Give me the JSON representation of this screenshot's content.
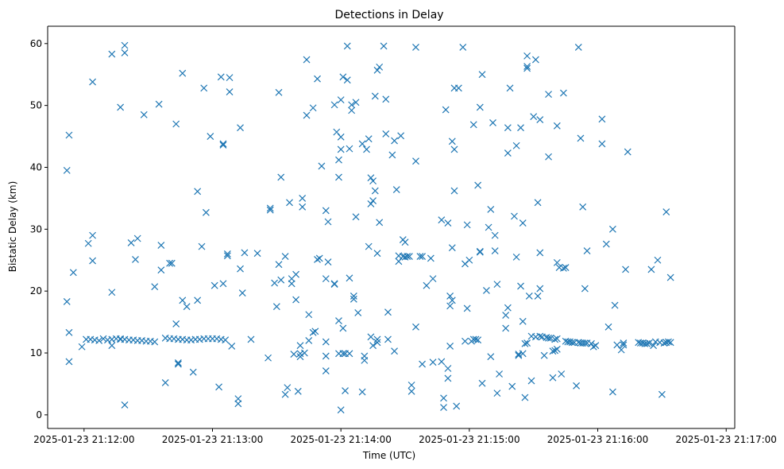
{
  "chart_data": {
    "type": "scatter",
    "title": "Detections in Delay",
    "xlabel": "Time (UTC)",
    "ylabel": "Bistatic Delay (km)",
    "x_units": "seconds after 2025-01-23 21:12:00 UTC",
    "xlim": [
      -17,
      304
    ],
    "ylim": [
      -2.2,
      62.8
    ],
    "grid": false,
    "marker": "x",
    "color": "#1f77b4",
    "x_ticks": [
      {
        "value": 0,
        "label": "2025-01-23 21:12:00"
      },
      {
        "value": 60,
        "label": "2025-01-23 21:13:00"
      },
      {
        "value": 120,
        "label": "2025-01-23 21:14:00"
      },
      {
        "value": 180,
        "label": "2025-01-23 21:15:00"
      },
      {
        "value": 240,
        "label": "2025-01-23 21:16:00"
      },
      {
        "value": 300,
        "label": "2025-01-23 21:17:00"
      }
    ],
    "y_ticks": [
      {
        "value": 0,
        "label": "0"
      },
      {
        "value": 10,
        "label": "10"
      },
      {
        "value": 20,
        "label": "20"
      },
      {
        "value": 30,
        "label": "30"
      },
      {
        "value": 40,
        "label": "40"
      },
      {
        "value": 50,
        "label": "50"
      },
      {
        "value": 60,
        "label": "60"
      }
    ],
    "points": [
      [
        -8,
        39.5
      ],
      [
        -8,
        18.3
      ],
      [
        -7,
        45.2
      ],
      [
        -7,
        13.3
      ],
      [
        -7,
        8.6
      ],
      [
        -5,
        23
      ],
      [
        -1,
        11
      ],
      [
        2,
        27.7
      ],
      [
        4,
        29
      ],
      [
        4,
        24.9
      ],
      [
        4,
        53.8
      ],
      [
        1,
        12.2
      ],
      [
        3,
        12.2
      ],
      [
        5,
        12.1
      ],
      [
        7,
        12
      ],
      [
        9,
        12.3
      ],
      [
        11,
        12.1
      ],
      [
        13,
        12.2
      ],
      [
        15,
        12.3
      ],
      [
        17,
        12.2
      ],
      [
        13,
        19.8
      ],
      [
        13,
        58.3
      ],
      [
        13,
        11.2
      ],
      [
        17,
        49.7
      ],
      [
        19,
        59.7
      ],
      [
        19,
        58.5
      ],
      [
        19,
        1.6
      ],
      [
        22,
        27.8
      ],
      [
        24,
        25.1
      ],
      [
        25,
        28.5
      ],
      [
        28,
        48.5
      ],
      [
        17,
        12.3
      ],
      [
        19,
        12.2
      ],
      [
        21,
        12.1
      ],
      [
        23,
        12.1
      ],
      [
        25,
        12
      ],
      [
        27,
        12
      ],
      [
        29,
        11.9
      ],
      [
        31,
        11.9
      ],
      [
        33,
        11.8
      ],
      [
        33,
        20.7
      ],
      [
        36,
        27.4
      ],
      [
        36,
        23.4
      ],
      [
        38,
        5.2
      ],
      [
        38,
        12.4
      ],
      [
        40,
        24.5
      ],
      [
        41,
        24.5
      ],
      [
        43,
        47
      ],
      [
        43,
        14.7
      ],
      [
        44,
        8.4
      ],
      [
        44,
        8.2
      ],
      [
        35,
        50.2
      ],
      [
        46,
        55.2
      ],
      [
        46,
        18.5
      ],
      [
        48,
        17.5
      ],
      [
        40,
        12.3
      ],
      [
        42,
        12.3
      ],
      [
        44,
        12.2
      ],
      [
        46,
        12.2
      ],
      [
        48,
        12.1
      ],
      [
        50,
        12.1
      ],
      [
        52,
        12.2
      ],
      [
        54,
        12.2
      ],
      [
        56,
        12.3
      ],
      [
        58,
        12.3
      ],
      [
        60,
        12.3
      ],
      [
        62,
        12.3
      ],
      [
        64,
        12.2
      ],
      [
        66,
        12.1
      ],
      [
        51,
        6.9
      ],
      [
        53,
        36.1
      ],
      [
        53,
        18.5
      ],
      [
        55,
        27.2
      ],
      [
        56,
        52.8
      ],
      [
        57,
        32.7
      ],
      [
        59,
        45
      ],
      [
        61,
        20.9
      ],
      [
        63,
        4.5
      ],
      [
        64,
        54.6
      ],
      [
        65,
        43.8
      ],
      [
        65,
        43.6
      ],
      [
        65,
        21.2
      ],
      [
        67,
        25.7
      ],
      [
        67,
        26
      ],
      [
        68,
        54.5
      ],
      [
        68,
        52.2
      ],
      [
        69,
        11.1
      ],
      [
        72,
        2.6
      ],
      [
        72,
        1.8
      ],
      [
        73,
        23.6
      ],
      [
        73,
        46.4
      ],
      [
        74,
        19.7
      ],
      [
        75,
        26.2
      ],
      [
        78,
        12.2
      ],
      [
        81,
        26.1
      ],
      [
        86,
        9.2
      ],
      [
        87,
        33.4
      ],
      [
        87,
        33.1
      ],
      [
        89,
        21.3
      ],
      [
        90,
        17.5
      ],
      [
        91,
        24.3
      ],
      [
        91,
        52.1
      ],
      [
        92,
        38.4
      ],
      [
        92,
        21.8
      ],
      [
        94,
        25.6
      ],
      [
        94,
        3.3
      ],
      [
        95,
        4.4
      ],
      [
        96,
        34.3
      ],
      [
        97,
        22
      ],
      [
        97,
        21.2
      ],
      [
        98,
        9.8
      ],
      [
        99,
        22.7
      ],
      [
        99,
        18.6
      ],
      [
        100,
        3.8
      ],
      [
        101,
        11.2
      ],
      [
        101,
        9.9
      ],
      [
        101,
        9.4
      ],
      [
        102,
        33.6
      ],
      [
        102,
        35
      ],
      [
        103,
        10
      ],
      [
        104,
        48.4
      ],
      [
        104,
        57.4
      ],
      [
        105,
        16.2
      ],
      [
        105,
        12
      ],
      [
        107,
        13.3
      ],
      [
        107,
        49.6
      ],
      [
        108,
        13.5
      ],
      [
        109,
        54.3
      ],
      [
        109,
        25.1
      ],
      [
        110,
        25.3
      ],
      [
        111,
        40.2
      ],
      [
        113,
        22
      ],
      [
        113,
        33
      ],
      [
        113,
        9.5
      ],
      [
        113,
        7.1
      ],
      [
        114,
        31.2
      ],
      [
        113,
        11.8
      ],
      [
        114,
        24.7
      ],
      [
        117,
        21.2
      ],
      [
        117,
        21.1
      ],
      [
        117,
        50.1
      ],
      [
        118,
        45.7
      ],
      [
        119,
        41.2
      ],
      [
        119,
        38.4
      ],
      [
        119,
        15.2
      ],
      [
        119,
        9.9
      ],
      [
        120,
        50.9
      ],
      [
        120,
        42.9
      ],
      [
        120,
        44.9
      ],
      [
        120,
        0.8
      ],
      [
        121,
        14
      ],
      [
        121,
        9.9
      ],
      [
        121,
        54.6
      ],
      [
        122,
        3.9
      ],
      [
        122,
        9.9
      ],
      [
        123,
        59.6
      ],
      [
        123,
        54.1
      ],
      [
        124,
        43
      ],
      [
        124,
        9.9
      ],
      [
        124,
        22.1
      ],
      [
        125,
        49.2
      ],
      [
        125,
        50.1
      ],
      [
        126,
        18.7
      ],
      [
        126,
        19.2
      ],
      [
        127,
        50.5
      ],
      [
        127,
        32
      ],
      [
        128,
        16.5
      ],
      [
        130,
        43.8
      ],
      [
        130,
        3.7
      ],
      [
        131,
        9.5
      ],
      [
        131,
        8.8
      ],
      [
        132,
        42.9
      ],
      [
        133,
        27.2
      ],
      [
        133,
        44.6
      ],
      [
        134,
        34.1
      ],
      [
        134,
        38.3
      ],
      [
        134,
        12.6
      ],
      [
        135,
        34.6
      ],
      [
        135,
        37.8
      ],
      [
        135,
        11.2
      ],
      [
        136,
        36.2
      ],
      [
        136,
        51.5
      ],
      [
        137,
        26.1
      ],
      [
        137,
        11.7
      ],
      [
        137,
        12.2
      ],
      [
        137,
        55.7
      ],
      [
        138,
        56.2
      ],
      [
        138,
        31.1
      ],
      [
        140,
        59.6
      ],
      [
        141,
        45.4
      ],
      [
        141,
        51
      ],
      [
        142,
        12.2
      ],
      [
        142,
        16.6
      ],
      [
        144,
        42
      ],
      [
        145,
        10.3
      ],
      [
        145,
        44.3
      ],
      [
        146,
        36.4
      ],
      [
        147,
        24.8
      ],
      [
        147,
        25.7
      ],
      [
        148,
        45.1
      ],
      [
        149,
        25.6
      ],
      [
        149,
        28.3
      ],
      [
        150,
        25.5
      ],
      [
        150,
        27.9
      ],
      [
        151,
        25.6
      ],
      [
        152,
        25.6
      ],
      [
        153,
        4.8
      ],
      [
        153,
        3.8
      ],
      [
        155,
        41
      ],
      [
        155,
        59.4
      ],
      [
        155,
        14.2
      ],
      [
        157,
        25.6
      ],
      [
        158,
        25.6
      ],
      [
        158,
        8.2
      ],
      [
        160,
        20.9
      ],
      [
        162,
        25.3
      ],
      [
        163,
        22
      ],
      [
        163,
        8.5
      ],
      [
        167,
        8.6
      ],
      [
        167,
        31.5
      ],
      [
        168,
        2.7
      ],
      [
        168,
        1.2
      ],
      [
        169,
        49.3
      ],
      [
        170,
        5.9
      ],
      [
        170,
        31
      ],
      [
        170,
        7.5
      ],
      [
        171,
        19.2
      ],
      [
        171,
        17.6
      ],
      [
        171,
        11.1
      ],
      [
        172,
        27
      ],
      [
        172,
        18.5
      ],
      [
        172,
        44.2
      ],
      [
        173,
        42.9
      ],
      [
        173,
        52.8
      ],
      [
        173,
        36.2
      ],
      [
        174,
        1.4
      ],
      [
        175,
        52.8
      ],
      [
        177,
        59.4
      ],
      [
        178,
        24.4
      ],
      [
        178,
        11.9
      ],
      [
        179,
        30.7
      ],
      [
        179,
        17.2
      ],
      [
        180,
        25
      ],
      [
        181,
        11.9
      ],
      [
        182,
        46.9
      ],
      [
        182,
        12.2
      ],
      [
        183,
        12.2
      ],
      [
        184,
        12.1
      ],
      [
        184,
        37.1
      ],
      [
        185,
        26.4
      ],
      [
        185,
        26.3
      ],
      [
        185,
        49.7
      ],
      [
        186,
        5.1
      ],
      [
        186,
        55
      ],
      [
        188,
        20.1
      ],
      [
        189,
        30.3
      ],
      [
        190,
        33.2
      ],
      [
        190,
        9.4
      ],
      [
        191,
        47.2
      ],
      [
        192,
        26.5
      ],
      [
        192,
        29
      ],
      [
        193,
        21.1
      ],
      [
        193,
        3.5
      ],
      [
        194,
        6.6
      ],
      [
        197,
        14
      ],
      [
        197,
        16.1
      ],
      [
        198,
        17.3
      ],
      [
        198,
        46.4
      ],
      [
        198,
        42.3
      ],
      [
        199,
        52.8
      ],
      [
        200,
        4.6
      ],
      [
        201,
        32.1
      ],
      [
        202,
        43.5
      ],
      [
        202,
        25.5
      ],
      [
        203,
        9.8
      ],
      [
        203,
        9.6
      ],
      [
        204,
        20.8
      ],
      [
        204,
        46.4
      ],
      [
        205,
        9.9
      ],
      [
        205,
        31
      ],
      [
        205,
        15.1
      ],
      [
        206,
        11.5
      ],
      [
        206,
        2.8
      ],
      [
        207,
        56
      ],
      [
        207,
        56.3
      ],
      [
        207,
        58
      ],
      [
        207,
        11.6
      ],
      [
        208,
        19.2
      ],
      [
        209,
        5.5
      ],
      [
        209,
        12.7
      ],
      [
        210,
        48.2
      ],
      [
        211,
        12.6
      ],
      [
        211,
        57.4
      ],
      [
        212,
        34.3
      ],
      [
        212,
        19.2
      ],
      [
        213,
        20.4
      ],
      [
        213,
        26.2
      ],
      [
        213,
        47.7
      ],
      [
        213,
        12.7
      ],
      [
        214,
        12.6
      ],
      [
        215,
        9.6
      ],
      [
        216,
        12.5
      ],
      [
        217,
        51.8
      ],
      [
        217,
        41.7
      ],
      [
        217,
        12.4
      ],
      [
        218,
        12.4
      ],
      [
        219,
        10.3
      ],
      [
        219,
        6
      ],
      [
        220,
        10.4
      ],
      [
        220,
        12.2
      ],
      [
        221,
        10.6
      ],
      [
        221,
        12.3
      ],
      [
        221,
        46.7
      ],
      [
        221,
        24.6
      ],
      [
        222,
        23.8
      ],
      [
        223,
        6.6
      ],
      [
        224,
        52
      ],
      [
        224,
        23.7
      ],
      [
        225,
        11.9
      ],
      [
        225,
        23.8
      ],
      [
        226,
        11.8
      ],
      [
        227,
        11.8
      ],
      [
        228,
        11.7
      ],
      [
        229,
        11.7
      ],
      [
        230,
        4.7
      ],
      [
        231,
        11.7
      ],
      [
        231,
        59.4
      ],
      [
        232,
        11.6
      ],
      [
        232,
        44.7
      ],
      [
        233,
        11.6
      ],
      [
        233,
        33.6
      ],
      [
        234,
        20.4
      ],
      [
        234,
        11.6
      ],
      [
        235,
        26.5
      ],
      [
        235,
        11.6
      ],
      [
        237,
        11.5
      ],
      [
        238,
        11
      ],
      [
        239,
        11.2
      ],
      [
        242,
        47.8
      ],
      [
        242,
        43.8
      ],
      [
        244,
        27.6
      ],
      [
        245,
        14.2
      ],
      [
        247,
        3.7
      ],
      [
        247,
        30
      ],
      [
        248,
        17.7
      ],
      [
        249,
        11.3
      ],
      [
        251,
        10.5
      ],
      [
        252,
        11.3
      ],
      [
        252,
        11.6
      ],
      [
        253,
        23.5
      ],
      [
        254,
        42.5
      ],
      [
        259,
        11.7
      ],
      [
        260,
        11.6
      ],
      [
        261,
        11.6
      ],
      [
        262,
        11.5
      ],
      [
        263,
        11.5
      ],
      [
        264,
        11.6
      ],
      [
        265,
        23.5
      ],
      [
        266,
        11.2
      ],
      [
        267,
        11.8
      ],
      [
        268,
        25
      ],
      [
        269,
        11.7
      ],
      [
        270,
        3.3
      ],
      [
        271,
        11.6
      ],
      [
        272,
        32.8
      ],
      [
        272,
        11.7
      ],
      [
        273,
        11.8
      ],
      [
        274,
        22.2
      ],
      [
        274,
        11.7
      ]
    ]
  }
}
